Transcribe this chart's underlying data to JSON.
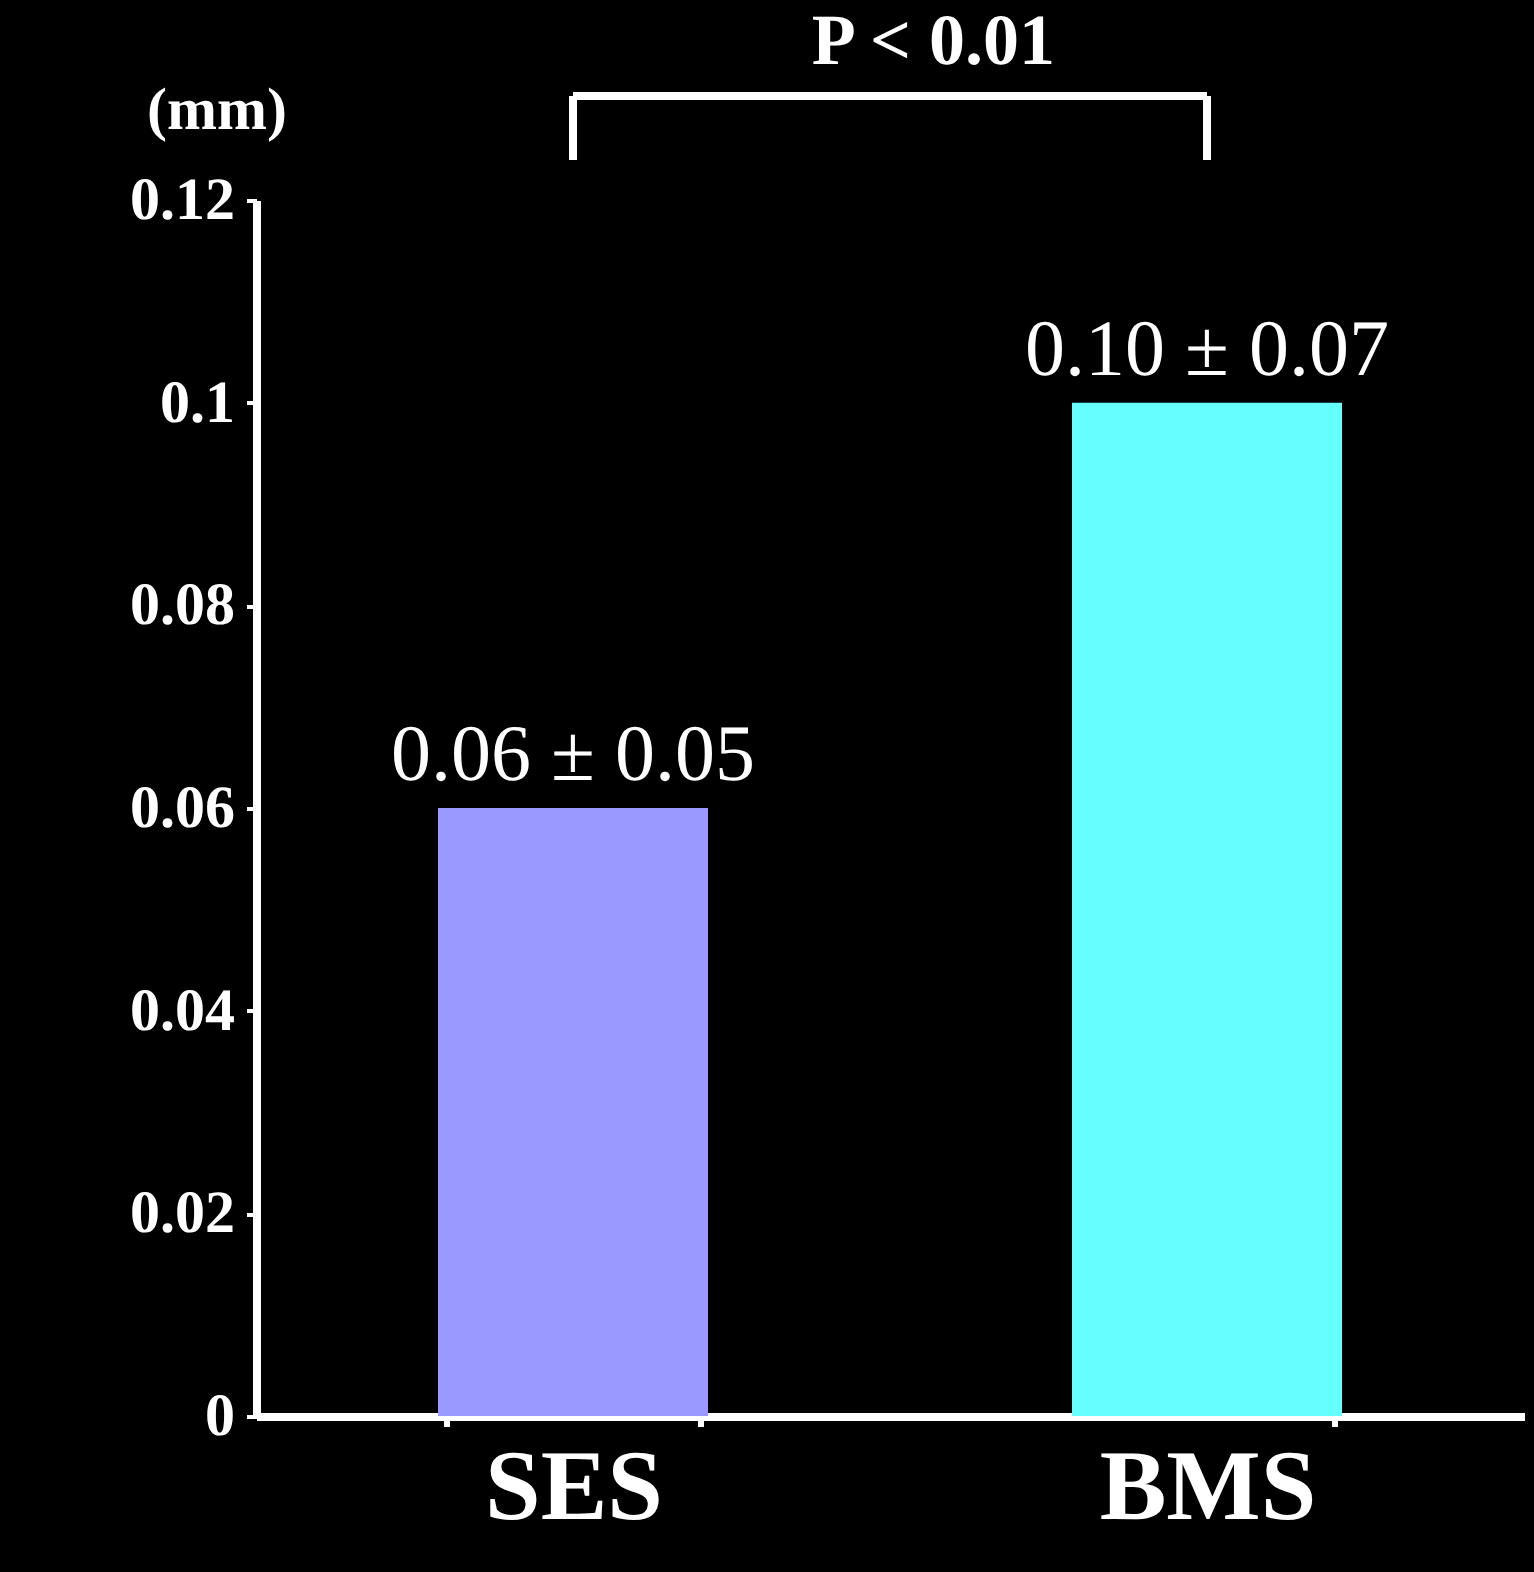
{
  "chart_data": {
    "type": "bar",
    "ylabel": "(mm)",
    "categories": [
      "SES",
      "BMS"
    ],
    "values": [
      0.06,
      0.1
    ],
    "colors": [
      "#9999ff",
      "#66ffff"
    ],
    "value_labels": [
      "0.06 ± 0.05",
      "0.10 ± 0.07"
    ],
    "ylim": [
      0,
      0.12
    ],
    "yticks": [
      0,
      0.02,
      0.04,
      0.06,
      0.08,
      0.1,
      0.12
    ],
    "annotations": [
      "P < 0.01"
    ]
  }
}
